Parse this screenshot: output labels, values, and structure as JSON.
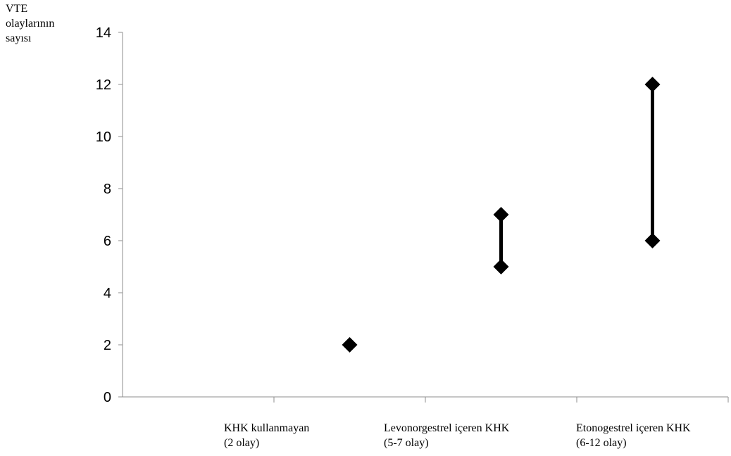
{
  "chart_data": {
    "type": "scatter",
    "ylabel_lines": [
      "VTE",
      "olaylarının",
      "sayısı"
    ],
    "ylim": [
      0,
      14
    ],
    "yticks": [
      0,
      2,
      4,
      6,
      8,
      10,
      12,
      14
    ],
    "grid": false,
    "categories": [
      {
        "line1": "KHK kullanmayan",
        "line2": "(2 olay)"
      },
      {
        "line1": "Levonorgestrel içeren KHK",
        "line2": "(5-7 olay)"
      },
      {
        "line1": "Etonogestrel içeren KHK",
        "line2": "(6-12 olay)"
      }
    ],
    "ranges": [
      {
        "low": 2,
        "high": 2
      },
      {
        "low": 5,
        "high": 7
      },
      {
        "low": 6,
        "high": 12
      }
    ],
    "marker_color": "#000000"
  }
}
